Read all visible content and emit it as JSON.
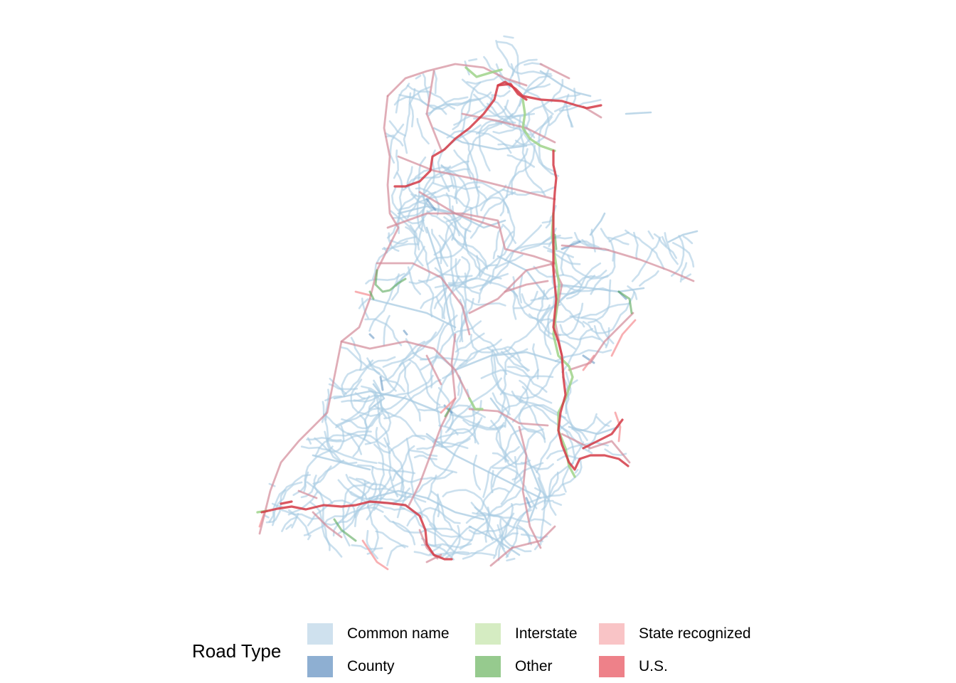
{
  "legend": {
    "title": "Road Type",
    "items": [
      {
        "key": "common_name",
        "label": "Common name",
        "color": "#cfe1ee"
      },
      {
        "key": "county",
        "label": "County",
        "color": "#8eafd2"
      },
      {
        "key": "interstate",
        "label": "Interstate",
        "color": "#d5ecc2"
      },
      {
        "key": "other",
        "label": "Other",
        "color": "#96ca8e"
      },
      {
        "key": "state",
        "label": "State recognized",
        "color": "#f9c4c6"
      },
      {
        "key": "us",
        "label": "U.S.",
        "color": "#ee8189"
      }
    ]
  },
  "map": {
    "line_colors": {
      "common_name": "#a8cbe2",
      "county": "#5b8fc0",
      "interstate": "#9fd389",
      "other": "#5aa95a",
      "state": "#f7a1a4",
      "us": "#d43a45",
      "us_faded": "#d38a98"
    }
  }
}
